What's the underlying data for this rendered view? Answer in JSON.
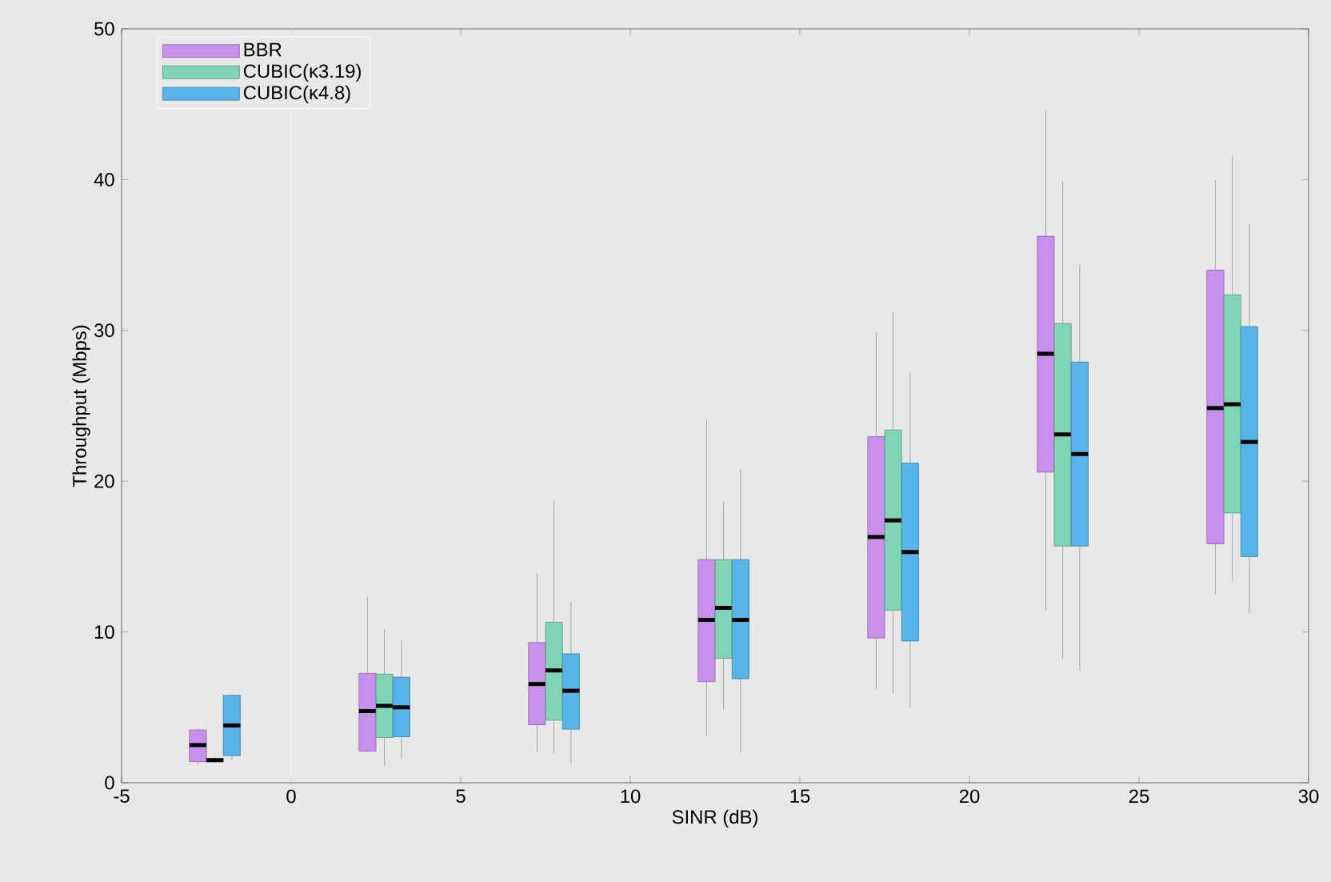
{
  "chart_data": {
    "type": "box",
    "xlabel": "SINR (dB)",
    "ylabel": "Throughput (Mbps)",
    "xlim": [
      -5,
      30
    ],
    "xticks": [
      -5,
      0,
      5,
      10,
      15,
      20,
      25,
      30
    ],
    "ylim": [
      0,
      50
    ],
    "yticks": [
      0,
      10,
      20,
      30,
      40,
      50
    ],
    "legend": "top left",
    "grid": false,
    "ref_lines": [
      {
        "axis": "x",
        "value": 0,
        "color": "#ffffff"
      }
    ],
    "series": [
      {
        "name": "BBR",
        "color": "#c890ec",
        "x": [
          -2.75,
          2.25,
          7.25,
          12.25,
          17.25,
          22.25,
          27.25
        ],
        "boxes": [
          {
            "low": 1.2,
            "q1": 1.4,
            "median": 2.5,
            "q3": 3.5,
            "high": 3.6
          },
          {
            "low": 2.0,
            "q1": 2.1,
            "median": 4.75,
            "q3": 7.25,
            "high": 12.3
          },
          {
            "low": 2.0,
            "q1": 3.85,
            "median": 6.55,
            "q3": 9.3,
            "high": 13.9
          },
          {
            "low": 3.1,
            "q1": 6.7,
            "median": 10.8,
            "q3": 14.8,
            "high": 24.1
          },
          {
            "low": 6.2,
            "q1": 9.6,
            "median": 16.3,
            "q3": 22.95,
            "high": 29.9
          },
          {
            "low": 11.4,
            "q1": 20.6,
            "median": 28.45,
            "q3": 36.25,
            "high": 44.6
          },
          {
            "low": 12.5,
            "q1": 15.85,
            "median": 24.85,
            "q3": 34.0,
            "high": 39.95
          }
        ]
      },
      {
        "name": "CUBIC(κ3.19)",
        "color": "#7fd4b6",
        "x": [
          -2.25,
          2.75,
          7.75,
          12.75,
          17.75,
          22.75,
          27.75
        ],
        "boxes": [
          {
            "low": 1.3,
            "q1": 1.4,
            "median": 1.5,
            "q3": 1.6,
            "high": 1.7
          },
          {
            "low": 1.1,
            "q1": 3.0,
            "median": 5.1,
            "q3": 7.2,
            "high": 10.2
          },
          {
            "low": 1.95,
            "q1": 4.15,
            "median": 7.45,
            "q3": 10.65,
            "high": 18.7
          },
          {
            "low": 4.85,
            "q1": 8.25,
            "median": 11.6,
            "q3": 14.8,
            "high": 18.65
          },
          {
            "low": 5.9,
            "q1": 11.45,
            "median": 17.4,
            "q3": 23.4,
            "high": 31.2
          },
          {
            "low": 8.2,
            "q1": 15.7,
            "median": 23.1,
            "q3": 30.45,
            "high": 39.9
          },
          {
            "low": 13.35,
            "q1": 17.9,
            "median": 25.1,
            "q3": 32.35,
            "high": 41.6
          }
        ]
      },
      {
        "name": "CUBIC(κ4.8)",
        "color": "#56b4e9",
        "x": [
          -1.75,
          3.25,
          8.25,
          13.25,
          18.25,
          23.25,
          28.25
        ],
        "boxes": [
          {
            "low": 1.5,
            "q1": 1.8,
            "median": 3.8,
            "q3": 5.8,
            "high": 5.9
          },
          {
            "low": 1.6,
            "q1": 3.05,
            "median": 5.0,
            "q3": 7.0,
            "high": 9.45
          },
          {
            "low": 1.3,
            "q1": 3.55,
            "median": 6.1,
            "q3": 8.55,
            "high": 12.0
          },
          {
            "low": 2.0,
            "q1": 6.9,
            "median": 10.8,
            "q3": 14.8,
            "high": 20.8
          },
          {
            "low": 5.0,
            "q1": 9.4,
            "median": 15.3,
            "q3": 21.2,
            "high": 27.2
          },
          {
            "low": 7.4,
            "q1": 15.7,
            "median": 21.8,
            "q3": 27.9,
            "high": 34.35
          },
          {
            "low": 11.2,
            "q1": 15.0,
            "median": 22.6,
            "q3": 30.25,
            "high": 37.05
          }
        ]
      }
    ]
  }
}
